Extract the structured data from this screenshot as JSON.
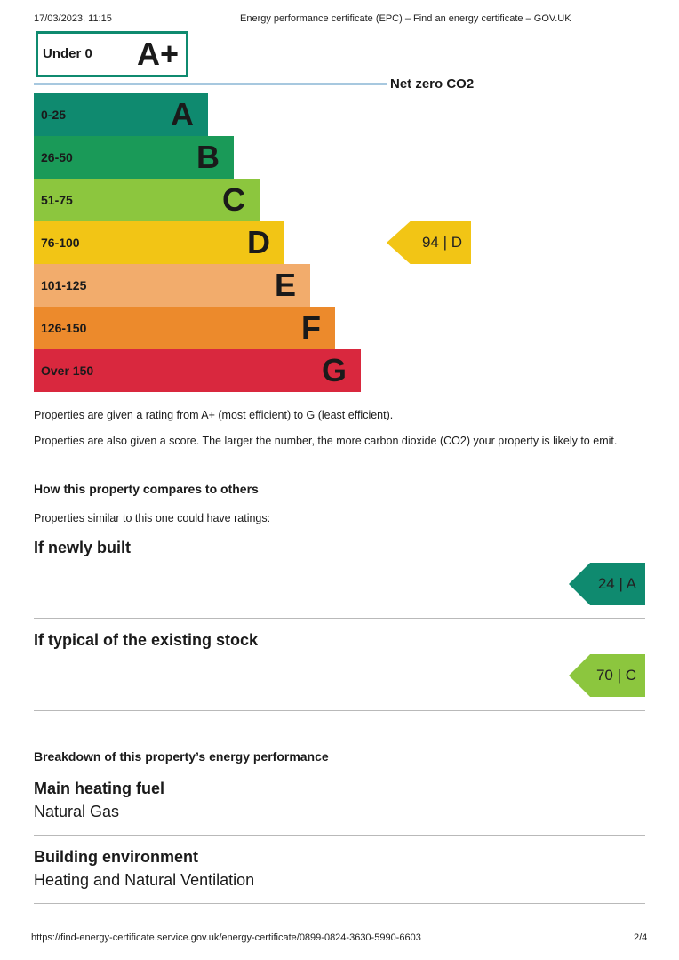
{
  "browser": {
    "timestamp": "17/03/2023, 11:15",
    "page_title": "Energy performance certificate (EPC) – Find an energy certificate – GOV.UK",
    "url": "https://find-energy-certificate.service.gov.uk/energy-certificate/0899-0824-3630-5990-6603",
    "page_number": "2/4"
  },
  "rating_scale": {
    "top_box": {
      "label": "Under 0",
      "letter": "A+"
    },
    "net_zero_label": "Net zero CO2",
    "bands": [
      {
        "range": "0-25",
        "letter": "A",
        "color": "#0f8a6f"
      },
      {
        "range": "26-50",
        "letter": "B",
        "color": "#1a9a58"
      },
      {
        "range": "51-75",
        "letter": "C",
        "color": "#8cc63e"
      },
      {
        "range": "76-100",
        "letter": "D",
        "color": "#f2c515"
      },
      {
        "range": "101-125",
        "letter": "E",
        "color": "#f2ac6c"
      },
      {
        "range": "126-150",
        "letter": "F",
        "color": "#ec8a2c"
      },
      {
        "range": "Over 150",
        "letter": "G",
        "color": "#d9283e"
      }
    ],
    "current": {
      "score": "94",
      "letter": "D",
      "label": "94 | D",
      "color": "#f2c515"
    }
  },
  "explanation": {
    "line1": "Properties are given a rating from A+ (most efficient) to G (least efficient).",
    "line2": "Properties are also given a score. The larger the number, the more carbon dioxide (CO2) your property is likely to emit."
  },
  "comparison": {
    "heading": "How this property compares to others",
    "intro": "Properties similar to this one could have ratings:",
    "newly_built": {
      "title": "If newly built",
      "label": "24 | A",
      "color": "#0f8a6f"
    },
    "typical_stock": {
      "title": "If typical of the existing stock",
      "label": "70 | C",
      "color": "#8cc63e"
    }
  },
  "breakdown": {
    "heading": "Breakdown of this property’s energy performance",
    "heating_fuel": {
      "title": "Main heating fuel",
      "value": "Natural Gas"
    },
    "building_environment": {
      "title": "Building environment",
      "value": "Heating and Natural Ventilation"
    }
  }
}
